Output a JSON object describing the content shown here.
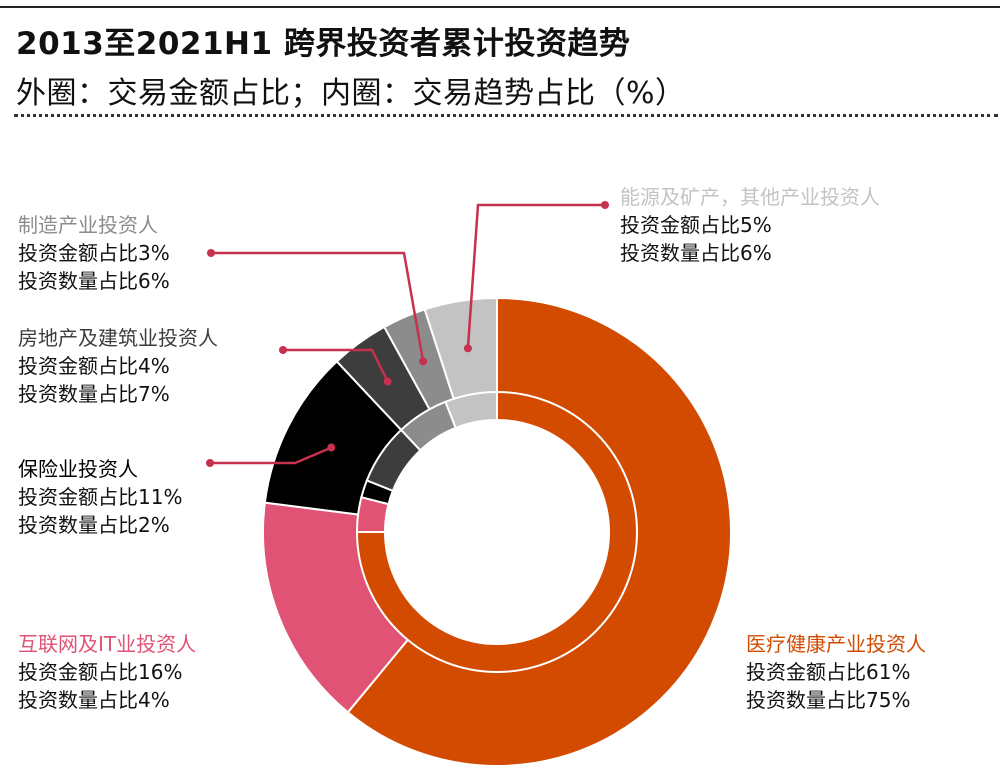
{
  "header": {
    "title": "2013至2021H1 跨界投资者累计投资趋势",
    "subtitle": "外圈：交易金额占比；内圈：交易趋势占比（%）"
  },
  "chart_data": {
    "type": "pie",
    "style": "nested-donut",
    "title": "2013至2021H1 跨界投资者累计投资趋势",
    "subtitle": "外圈：交易金额占比；内圈：交易趋势占比（%）",
    "categories": [
      "医疗健康产业投资人",
      "互联网及IT业投资人",
      "保险业投资人",
      "房地产及建筑业投资人",
      "制造产业投资人",
      "能源及矿产，其他产业投资人"
    ],
    "colors": [
      "#d24b00",
      "#e05374",
      "#000000",
      "#3d3d3d",
      "#8c8c8c",
      "#c3c3c3"
    ],
    "series": [
      {
        "ring": "outer",
        "values": [
          61,
          16,
          11,
          4,
          3,
          5
        ]
      },
      {
        "ring": "inner",
        "values": [
          75,
          4,
          2,
          7,
          6,
          6
        ]
      }
    ],
    "labels": [
      {
        "name": "医疗健康产业投资人",
        "amount": "投资金额占比61%",
        "count": "投资数量占比75%",
        "color": "#d24b00"
      },
      {
        "name": "互联网及IT业投资人",
        "amount": "投资金额占比16%",
        "count": "投资数量占比4%",
        "color": "#e05374"
      },
      {
        "name": "保险业投资人",
        "amount": "投资金额占比11%",
        "count": "投资数量占比2%",
        "color": "#000000"
      },
      {
        "name": "房地产及建筑业投资人",
        "amount": "投资金额占比4%",
        "count": "投资数量占比7%",
        "color": "#3d3d3d"
      },
      {
        "name": "制造产业投资人",
        "amount": "投资金额占比3%",
        "count": "投资数量占比6%",
        "color": "#8c8c8c"
      },
      {
        "name": "能源及矿产，其他产业投资人",
        "amount": "投资金额占比5%",
        "count": "投资数量占比6%",
        "color": "#c3c3c3"
      }
    ],
    "leader_color": "#c8304f"
  }
}
